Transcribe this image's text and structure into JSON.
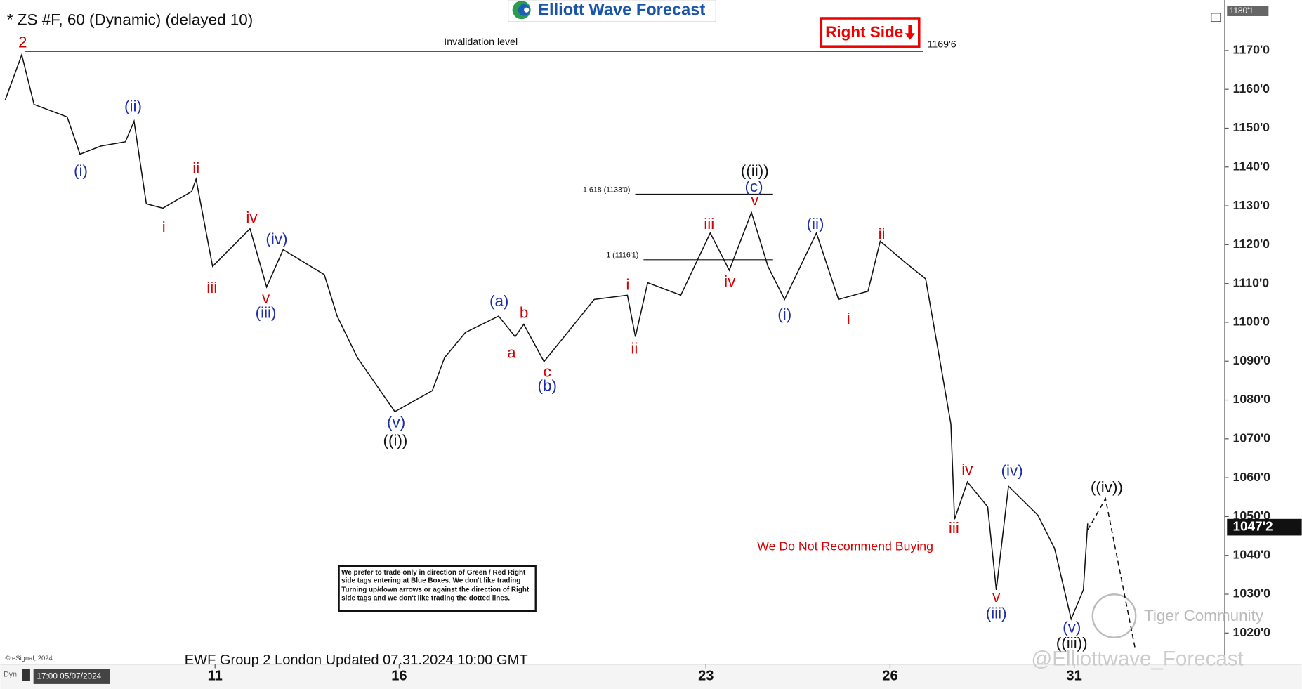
{
  "chart_data": {
    "type": "line",
    "title": "* ZS #F, 60 (Dynamic) (delayed 10)",
    "logo": "Elliott Wave Forecast",
    "tag": "Right Side",
    "note": "We Do Not Recommend Buying",
    "disclaimer": "We prefer to trade only in direction of Green / Red Right side tags entering at Blue Boxes. We don't like trading Turning up/down arrows or against the direction of Right side tags and we don't like trading the dotted lines.",
    "footer": "EWF Group 2 London Updated 07.31.2024 10:00 GMT",
    "copyright": "© eSignal, 2024",
    "timestamp": "17:00 05/07/2024",
    "mode": "Dyn",
    "watermark1": "Tiger Community",
    "watermark2": "@Elliottwave_Forecast",
    "color": "#111111",
    "x": [
      -0.42,
      -0.15,
      0.05,
      0.59,
      0.8,
      1.14,
      1.54,
      1.68,
      1.88,
      2.15,
      2.62,
      2.69,
      2.96,
      3.57,
      3.84,
      4.11,
      4.78,
      4.99,
      5.32,
      5.93,
      6.54,
      6.74,
      7.08,
      7.62,
      7.89,
      8.03,
      8.36,
      9.18,
      9.72,
      9.85,
      10.05,
      10.59,
      11.07,
      11.38,
      11.74,
      12.01,
      12.28,
      12.8,
      13.16,
      13.64,
      13.84,
      14.24,
      14.58,
      14.78,
      14.99,
      15.05,
      15.26,
      15.59,
      15.73,
      15.93,
      16.41,
      16.68,
      16.95,
      17.15,
      17.22
    ],
    "values": [
      1157.2,
      1168.9,
      1156.1,
      1152.9,
      1143.3,
      1145.4,
      1146.5,
      1151.8,
      1130.5,
      1129.4,
      1133.7,
      1136.9,
      1114.4,
      1124.1,
      1109.1,
      1118.7,
      1112.3,
      1101.6,
      1090.9,
      1077,
      1082.4,
      1090.9,
      1097.4,
      1101.6,
      1096.3,
      1099.5,
      1089.9,
      1105.9,
      1107,
      1096.3,
      1110.2,
      1107,
      1123,
      1113.4,
      1128.3,
      1114.4,
      1105.9,
      1123,
      1105.9,
      1108,
      1120.9,
      1115.5,
      1111.2,
      1093.1,
      1073.8,
      1049.3,
      1058.9,
      1052.5,
      1031.1,
      1057.8,
      1050.3,
      1041.8,
      1023.6,
      1031.1,
      1048.2
    ],
    "projection": {
      "x": [
        17.22,
        17.51,
        17.99
      ],
      "values": [
        1046.5,
        1054.6,
        1016.2
      ]
    },
    "xlim": [
      -0.5,
      19.45
    ],
    "ylim": [
      1012,
      1183
    ],
    "xticks": [
      {
        "value": 3,
        "label": "11"
      },
      {
        "value": 6,
        "label": "16"
      },
      {
        "value": 11,
        "label": "23"
      },
      {
        "value": 14,
        "label": "26"
      },
      {
        "value": 17,
        "label": "31"
      }
    ],
    "yticks": [
      {
        "value": 1020,
        "label": "1020'0"
      },
      {
        "value": 1030,
        "label": "1030'0"
      },
      {
        "value": 1040,
        "label": "1040'0"
      },
      {
        "value": 1050,
        "label": "1050'0"
      },
      {
        "value": 1060,
        "label": "1060'0"
      },
      {
        "value": 1070,
        "label": "1070'0"
      },
      {
        "value": 1080,
        "label": "1080'0"
      },
      {
        "value": 1090,
        "label": "1090'0"
      },
      {
        "value": 1100,
        "label": "1100'0"
      },
      {
        "value": 1110,
        "label": "1110'0"
      },
      {
        "value": 1120,
        "label": "1120'0"
      },
      {
        "value": 1130,
        "label": "1130'0"
      },
      {
        "value": 1140,
        "label": "1140'0"
      },
      {
        "value": 1150,
        "label": "1150'0"
      },
      {
        "value": 1160,
        "label": "1160'0"
      },
      {
        "value": 1170,
        "label": "1170'0"
      }
    ],
    "invalidation": {
      "value": 1169.75,
      "label": "1169'6",
      "text": "Invalidation level"
    },
    "fib_levels": [
      {
        "value": 1133,
        "label": "1.618 (1133'0)"
      },
      {
        "value": 1116.125,
        "label": "1 (1116'1)"
      }
    ],
    "last_price": {
      "value": 1047.25,
      "label": "1047'2"
    },
    "top_price": {
      "value": 1180.125,
      "label": "1180'1"
    },
    "wave_labels": [
      {
        "text": "2",
        "color": "#d40000"
      },
      {
        "text": "(i)",
        "color": "#1c2fa8"
      },
      {
        "text": "(ii)",
        "color": "#1c2fa8"
      },
      {
        "text": "i",
        "color": "#d40000"
      },
      {
        "text": "ii",
        "color": "#d40000"
      },
      {
        "text": "iii",
        "color": "#d40000"
      },
      {
        "text": "iv",
        "color": "#d40000"
      },
      {
        "text": "v",
        "color": "#d40000"
      },
      {
        "text": "(iii)",
        "color": "#1c2fa8"
      },
      {
        "text": "(iv)",
        "color": "#1c2fa8"
      },
      {
        "text": "(v)",
        "color": "#1c2fa8"
      },
      {
        "text": "((i))",
        "color": "#111111"
      },
      {
        "text": "(a)",
        "color": "#1c2fa8"
      },
      {
        "text": "a",
        "color": "#d40000"
      },
      {
        "text": "b",
        "color": "#d40000"
      },
      {
        "text": "c",
        "color": "#d40000"
      },
      {
        "text": "(b)",
        "color": "#1c2fa8"
      },
      {
        "text": "i",
        "color": "#d40000"
      },
      {
        "text": "ii",
        "color": "#d40000"
      },
      {
        "text": "iii",
        "color": "#d40000"
      },
      {
        "text": "iv",
        "color": "#d40000"
      },
      {
        "text": "v",
        "color": "#d40000"
      },
      {
        "text": "(c)",
        "color": "#1c2fa8"
      },
      {
        "text": "((ii))",
        "color": "#111111"
      },
      {
        "text": "(i)",
        "color": "#1c2fa8"
      },
      {
        "text": "(ii)",
        "color": "#1c2fa8"
      },
      {
        "text": "i",
        "color": "#d40000"
      },
      {
        "text": "ii",
        "color": "#d40000"
      },
      {
        "text": "iii",
        "color": "#d40000"
      },
      {
        "text": "iv",
        "color": "#d40000"
      },
      {
        "text": "(iv)",
        "color": "#1c2fa8"
      },
      {
        "text": "v",
        "color": "#d40000"
      },
      {
        "text": "(iii)",
        "color": "#1c2fa8"
      },
      {
        "text": "(v)",
        "color": "#1c2fa8"
      },
      {
        "text": "((iii))",
        "color": "#111111"
      },
      {
        "text": "((iv))",
        "color": "#111111"
      }
    ]
  }
}
